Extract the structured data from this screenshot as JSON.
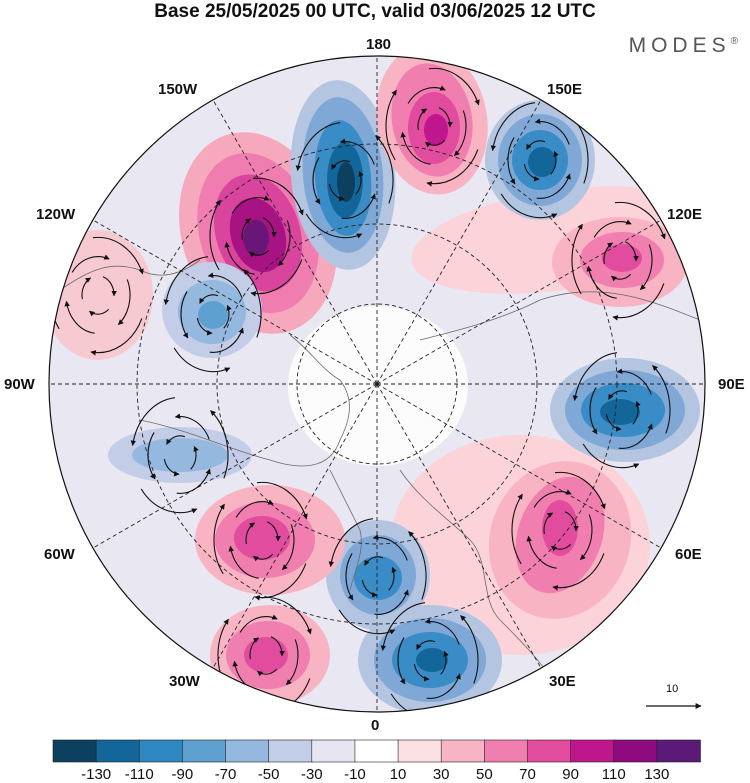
{
  "header": {
    "title": "Base 25/05/2025 00 UTC, valid 03/06/2025 12 UTC",
    "brand": "MODES",
    "brand_mark": "®"
  },
  "map": {
    "projection": "north-polar-stereographic",
    "longitude_labels": {
      "top": "180",
      "bottom": "0",
      "left": "90W",
      "right": "90E",
      "upper_left_1": "150W",
      "upper_left_2": "120W",
      "upper_right_1": "150E",
      "upper_right_2": "120E",
      "lower_left_1": "60W",
      "lower_left_2": "30W",
      "lower_right_1": "60E",
      "lower_right_2": "30E"
    },
    "vector_scale_label": "10",
    "anomaly_centers": [
      {
        "sign": "positive",
        "peak_class": 110,
        "lon": -150
      },
      {
        "sign": "negative",
        "peak_class": -110,
        "lon": -170
      },
      {
        "sign": "positive",
        "peak_class": 90,
        "lon": 170
      },
      {
        "sign": "negative",
        "peak_class": -90,
        "lon": 145
      },
      {
        "sign": "positive",
        "peak_class": 70,
        "lon": 115
      },
      {
        "sign": "negative",
        "peak_class": -90,
        "lon": 85
      },
      {
        "sign": "positive",
        "peak_class": 70,
        "lon": 55
      },
      {
        "sign": "negative",
        "peak_class": -70,
        "lon": 10
      },
      {
        "sign": "negative",
        "peak_class": -90,
        "lon": 20
      },
      {
        "sign": "positive",
        "peak_class": 70,
        "lon": -35
      },
      {
        "sign": "positive",
        "peak_class": 70,
        "lon": -25
      },
      {
        "sign": "negative",
        "peak_class": -70,
        "lon": -125
      },
      {
        "sign": "negative",
        "peak_class": -50,
        "lon": -80
      }
    ]
  },
  "colorbar": {
    "labels": [
      "-130",
      "-110",
      "-90",
      "-70",
      "-50",
      "-30",
      "-10",
      "10",
      "30",
      "50",
      "70",
      "90",
      "110",
      "130"
    ],
    "colors": [
      "#0d3f5f",
      "#13669a",
      "#2f87c1",
      "#5ea0d0",
      "#94b8de",
      "#c4cde8",
      "#e6e5f2",
      "#ffffff",
      "#fde0e2",
      "#f9b4c3",
      "#f07fb0",
      "#e24c9e",
      "#c0168d",
      "#8e0a7e",
      "#5b1a78"
    ]
  }
}
